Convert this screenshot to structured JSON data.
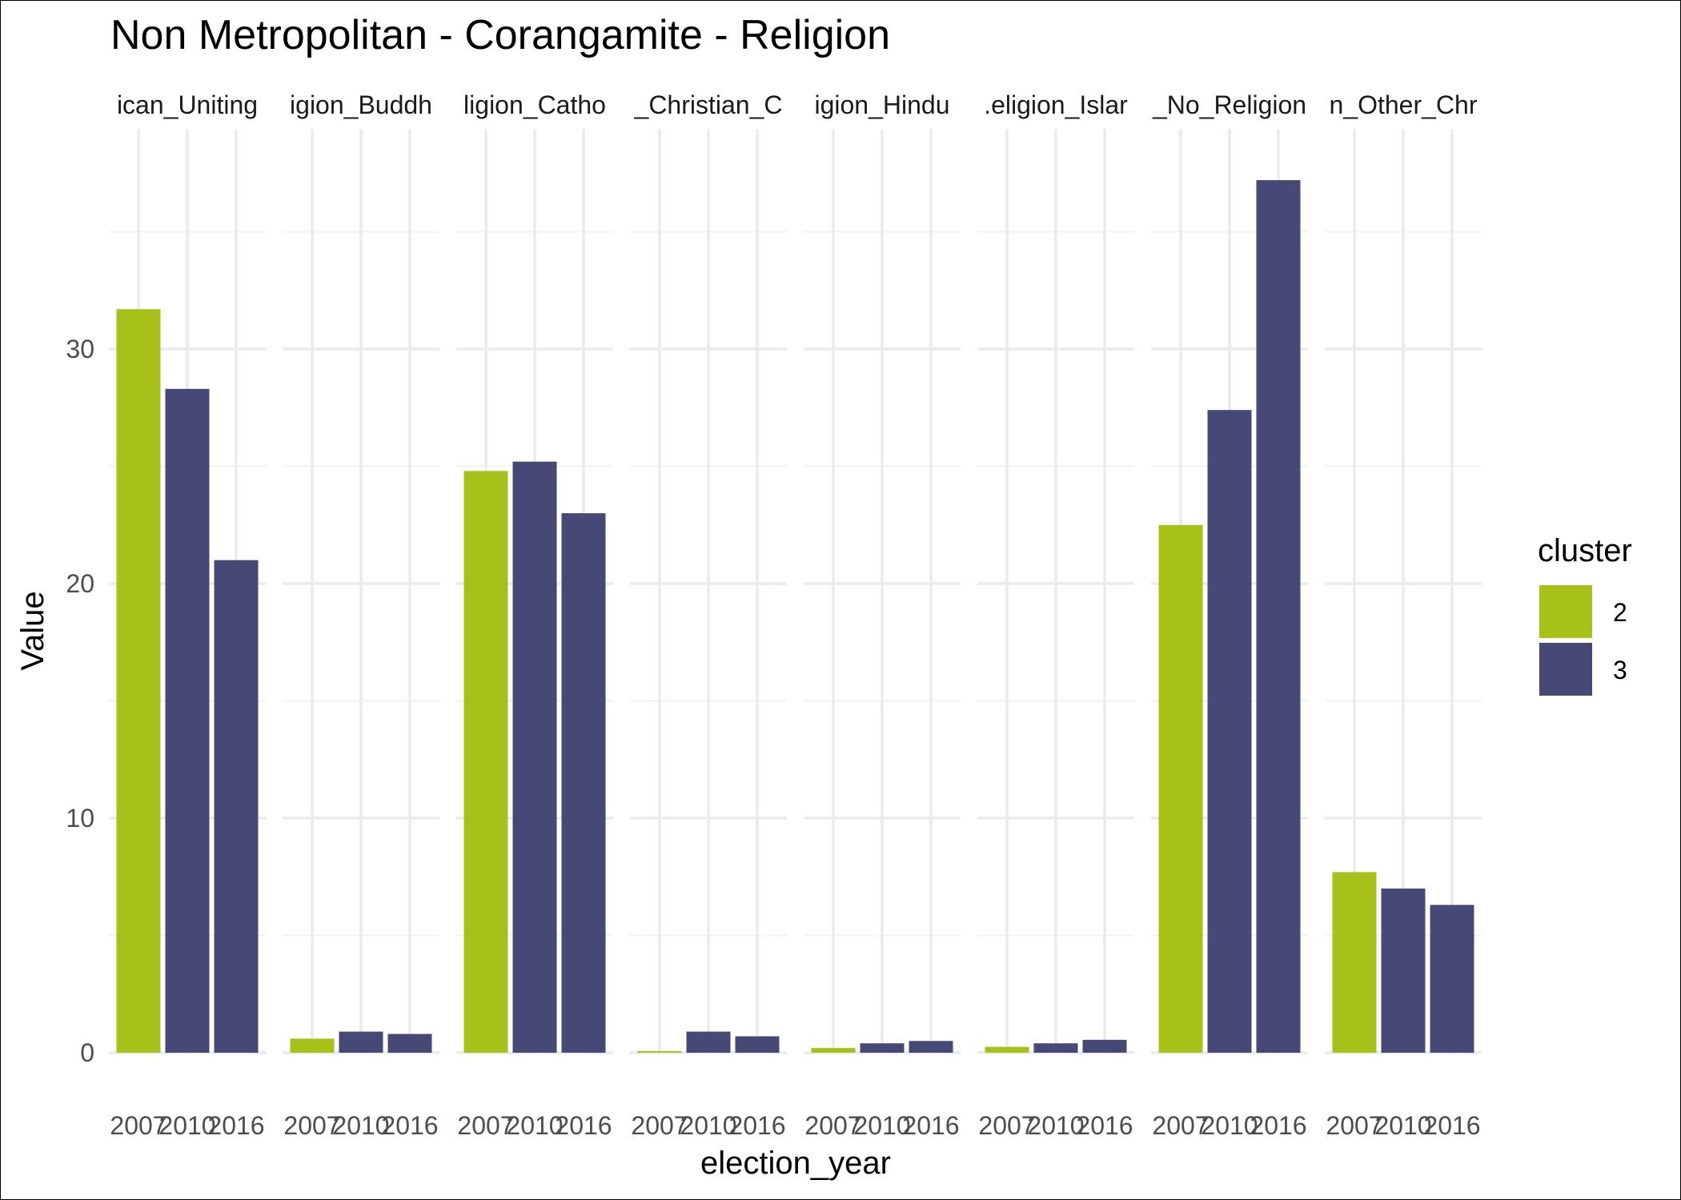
{
  "chart_data": {
    "type": "bar",
    "title": "Non Metropolitan - Corangamite - Religion",
    "xlabel": "election_year",
    "ylabel": "Value",
    "ylim": [
      0,
      37.5
    ],
    "yticks": [
      "0",
      "10",
      "20",
      "30"
    ],
    "ytick_values": [
      0,
      10,
      20,
      30
    ],
    "grid": true,
    "legend": {
      "title": "cluster",
      "position": "right",
      "entries": [
        {
          "label": "2",
          "color": "#a8c01a"
        },
        {
          "label": "3",
          "color": "#464875"
        }
      ]
    },
    "x_categories": [
      "2007",
      "2010",
      "2016"
    ],
    "panels": [
      {
        "label": "Religion_Anglican_Uniting",
        "strip": "ican_Uniting",
        "values": [
          31.7,
          28.3,
          21.0
        ],
        "clusters": [
          "2",
          "3",
          "3"
        ]
      },
      {
        "label": "Religion_Buddhism",
        "strip": "igion_Buddh",
        "values": [
          0.6,
          0.9,
          0.8
        ],
        "clusters": [
          "2",
          "3",
          "3"
        ]
      },
      {
        "label": "Religion_Catholic",
        "strip": "ligion_Catho",
        "values": [
          24.8,
          25.2,
          23.0
        ],
        "clusters": [
          "2",
          "3",
          "3"
        ]
      },
      {
        "label": "Religion_Christian_Other",
        "strip": "_Christian_C",
        "values": [
          0.0,
          0.9,
          0.7
        ],
        "clusters": [
          "2",
          "3",
          "3"
        ]
      },
      {
        "label": "Religion_Hinduism",
        "strip": "igion_Hindu",
        "values": [
          0.2,
          0.4,
          0.5
        ],
        "clusters": [
          "2",
          "3",
          "3"
        ]
      },
      {
        "label": "Religion_Islam",
        "strip": ".eligion_Islar",
        "values": [
          0.25,
          0.4,
          0.55
        ],
        "clusters": [
          "2",
          "3",
          "3"
        ]
      },
      {
        "label": "Religion_No_Religion",
        "strip": "_No_Religion",
        "values": [
          22.5,
          27.4,
          37.2
        ],
        "clusters": [
          "2",
          "3",
          "3"
        ]
      },
      {
        "label": "Religion_Other_Christian",
        "strip": "n_Other_Chr",
        "values": [
          7.7,
          7.0,
          6.3
        ],
        "clusters": [
          "2",
          "3",
          "3"
        ]
      }
    ]
  }
}
